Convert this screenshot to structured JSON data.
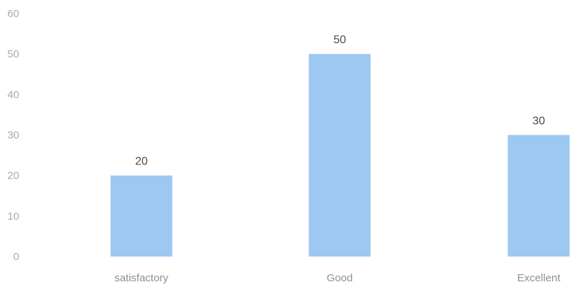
{
  "chart_data": {
    "type": "bar",
    "categories": [
      "satisfactory",
      "Good",
      "Excellent"
    ],
    "values": [
      20,
      50,
      30
    ],
    "data_labels": [
      "20",
      "50",
      "30"
    ],
    "title": "",
    "xlabel": "",
    "ylabel": "",
    "ylim": [
      0,
      60
    ],
    "yticks": [
      "0",
      "10",
      "20",
      "30",
      "40",
      "50",
      "60"
    ],
    "grid": false,
    "legend": "none",
    "bar_color": "#9cc8f2"
  }
}
